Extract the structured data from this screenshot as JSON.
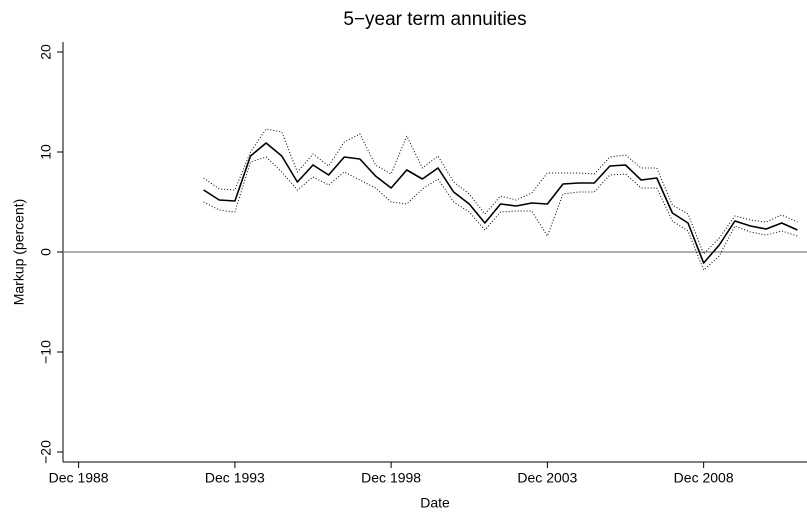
{
  "chart_data": {
    "type": "line",
    "title": "5−year term annuities",
    "xlabel": "Date",
    "ylabel": "Markup (percent)",
    "x": [
      "1992-12",
      "1993-06",
      "1993-12",
      "1994-06",
      "1994-12",
      "1995-06",
      "1995-12",
      "1996-06",
      "1996-12",
      "1997-06",
      "1997-12",
      "1998-06",
      "1998-12",
      "1999-06",
      "1999-12",
      "2000-06",
      "2000-12",
      "2001-06",
      "2001-12",
      "2002-06",
      "2002-12",
      "2003-06",
      "2003-12",
      "2004-06",
      "2004-12",
      "2005-06",
      "2005-12",
      "2006-06",
      "2006-12",
      "2007-06",
      "2007-12",
      "2008-06",
      "2008-12",
      "2009-06",
      "2009-12",
      "2010-06",
      "2010-12",
      "2011-06",
      "2011-12"
    ],
    "series": [
      {
        "color": "#000000",
        "style": "solid",
        "values": [
          6.2,
          5.2,
          5.1,
          9.6,
          10.9,
          9.6,
          7.0,
          8.7,
          7.7,
          9.5,
          9.3,
          7.6,
          6.4,
          8.2,
          7.3,
          8.4,
          6.0,
          4.8,
          2.9,
          4.8,
          4.6,
          4.9,
          4.8,
          6.8,
          6.9,
          6.9,
          8.6,
          8.7,
          7.2,
          7.4,
          3.9,
          2.9,
          -1.1,
          0.7,
          3.1,
          2.6,
          2.3,
          2.9,
          2.2
        ]
      },
      {
        "color": "#000000",
        "style": "dotted",
        "values": [
          7.4,
          6.3,
          6.2,
          10.0,
          12.3,
          12.0,
          8.0,
          9.8,
          8.6,
          11.0,
          11.8,
          8.7,
          7.8,
          11.6,
          8.4,
          9.6,
          7.0,
          5.8,
          3.8,
          5.6,
          5.2,
          5.9,
          7.9,
          7.9,
          7.9,
          7.8,
          9.5,
          9.7,
          8.4,
          8.4,
          4.7,
          3.8,
          -0.2,
          1.4,
          3.6,
          3.2,
          3.0,
          3.7,
          3.0
        ]
      },
      {
        "color": "#000000",
        "style": "dotted",
        "values": [
          5.0,
          4.2,
          4.0,
          9.0,
          9.5,
          8.0,
          6.2,
          7.5,
          6.7,
          8.0,
          7.2,
          6.4,
          5.0,
          4.8,
          6.3,
          7.3,
          5.0,
          4.0,
          2.2,
          4.0,
          4.1,
          4.1,
          1.6,
          5.8,
          6.0,
          6.0,
          7.7,
          7.8,
          6.4,
          6.4,
          3.1,
          2.1,
          -1.8,
          -0.4,
          2.6,
          2.0,
          1.7,
          2.1,
          1.6
        ]
      }
    ],
    "xlim": [
      "1988-06",
      "2012-01"
    ],
    "xticks": [
      {
        "value": "1988-12",
        "label": "Dec 1988"
      },
      {
        "value": "1993-12",
        "label": "Dec 1993"
      },
      {
        "value": "1998-12",
        "label": "Dec 1998"
      },
      {
        "value": "2003-12",
        "label": "Dec 2003"
      },
      {
        "value": "2008-12",
        "label": "Dec 2008"
      }
    ],
    "ylim": [
      -21,
      21
    ],
    "yticks": [
      {
        "value": -20,
        "label": "−20"
      },
      {
        "value": -10,
        "label": "−10"
      },
      0,
      10,
      20
    ],
    "hline": 0,
    "hline_color": "#808080"
  }
}
